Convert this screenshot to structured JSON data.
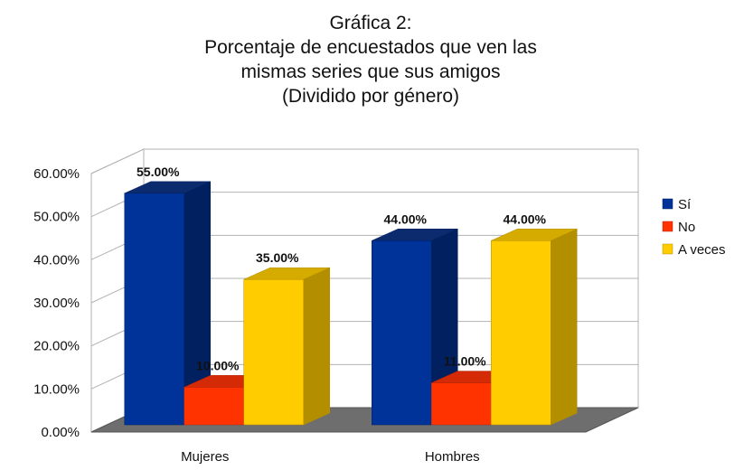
{
  "chart_data": {
    "type": "bar",
    "title_lines": [
      "Gráfica 2:",
      "Porcentaje de encuestados que ven las",
      "mismas series que sus amigos",
      "(Dividido por género)"
    ],
    "categories": [
      "Mujeres",
      "Hombres"
    ],
    "series": [
      {
        "name": "Sí",
        "values": [
          55,
          44
        ],
        "labels": [
          "55.00%",
          "44.00%"
        ],
        "color": "#003399",
        "side": "#002060",
        "top": "#0c2a6e"
      },
      {
        "name": "No",
        "values": [
          10,
          11
        ],
        "labels": [
          "10.00%",
          "11.00%"
        ],
        "color": "#ff3300",
        "side": "#b3240a",
        "top": "#d42a05"
      },
      {
        "name": "A veces",
        "values": [
          35,
          44
        ],
        "labels": [
          "35.00%",
          "44.00%"
        ],
        "color": "#ffcc00",
        "side": "#b38f00",
        "top": "#d6ab00"
      }
    ],
    "y_ticks": [
      "0.00%",
      "10.00%",
      "20.00%",
      "30.00%",
      "40.00%",
      "50.00%",
      "60.00%"
    ],
    "ylim": [
      0,
      60
    ],
    "grid": true,
    "legend_position": "right",
    "style": "3d"
  }
}
